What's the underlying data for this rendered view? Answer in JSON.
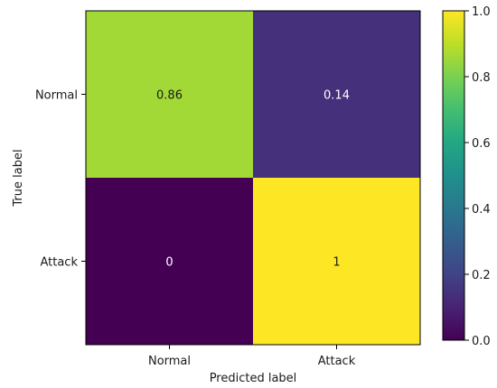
{
  "chart_data": {
    "type": "heatmap",
    "title": "",
    "xlabel": "Predicted label",
    "ylabel": "True label",
    "x_categories": [
      "Normal",
      "Attack"
    ],
    "y_categories": [
      "Normal",
      "Attack"
    ],
    "matrix": [
      [
        0.86,
        0.14
      ],
      [
        0,
        1
      ]
    ],
    "cell_labels": [
      [
        "0.86",
        "0.14"
      ],
      [
        "0",
        "1"
      ]
    ],
    "colormap": "viridis",
    "colorbar": {
      "range": [
        0.0,
        1.0
      ],
      "ticks": [
        "0.0",
        "0.2",
        "0.4",
        "0.6",
        "0.8",
        "1.0"
      ]
    },
    "grid": false
  }
}
